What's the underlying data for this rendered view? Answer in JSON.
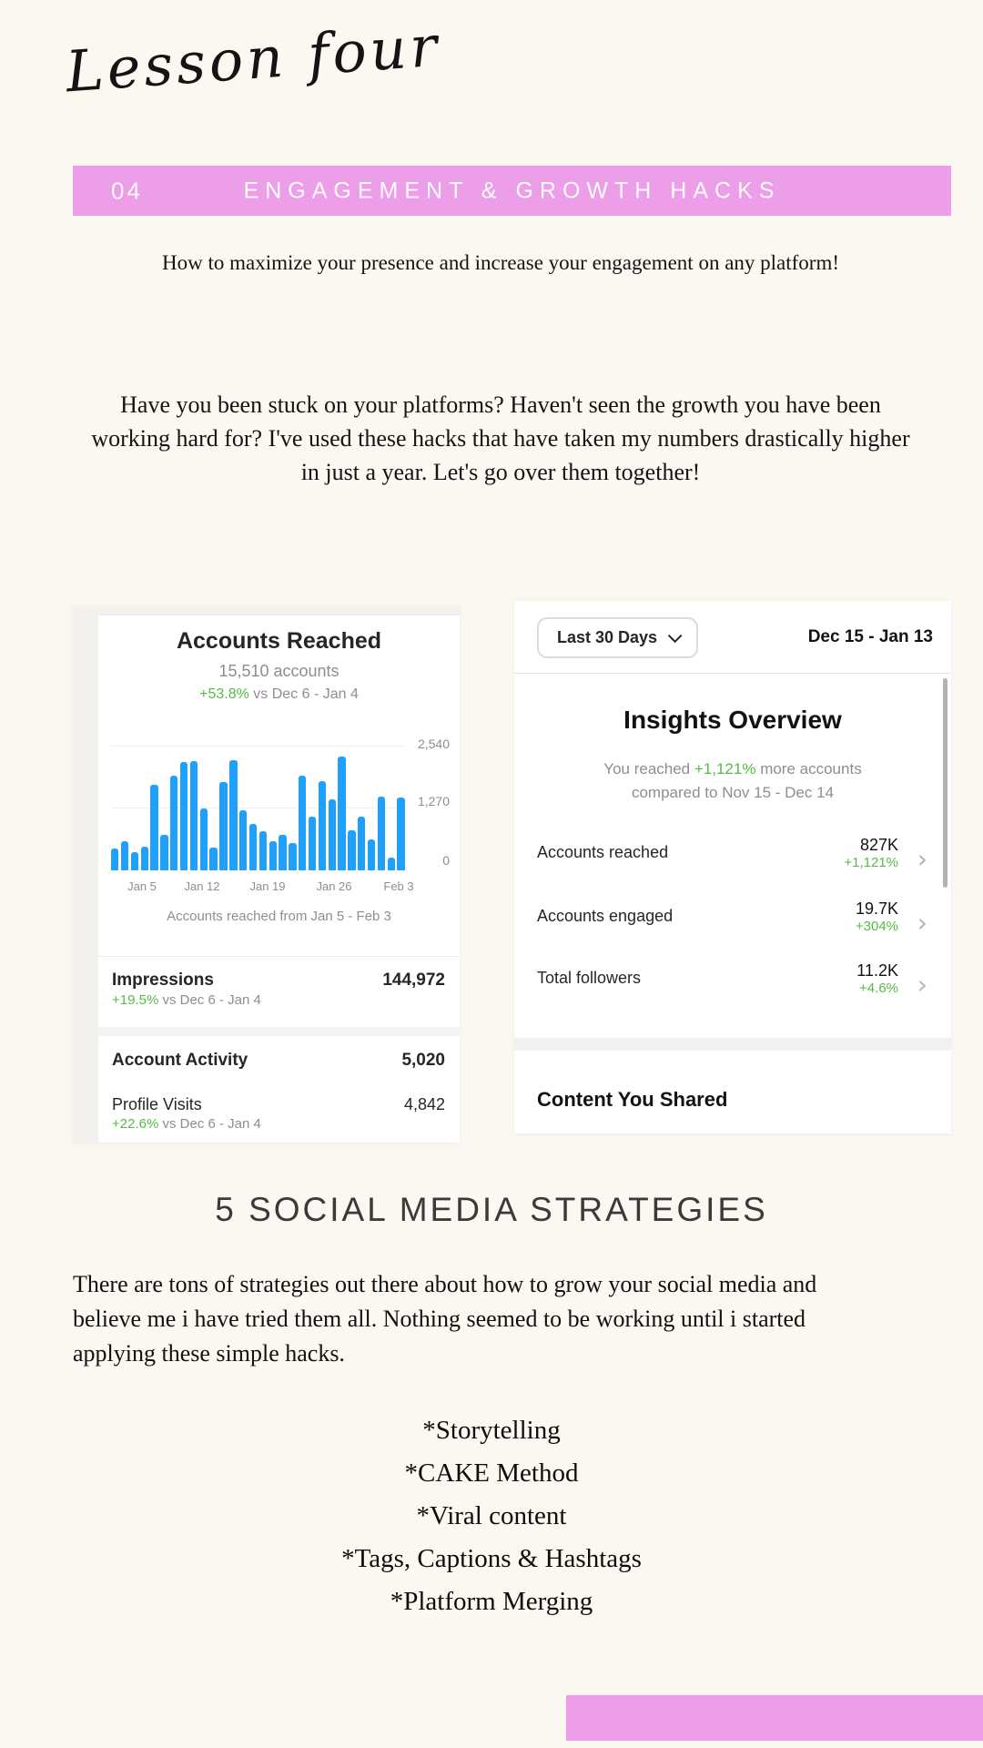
{
  "page": {
    "script_title": "Lesson four",
    "banner": {
      "number": "04",
      "title": "ENGAGEMENT & GROWTH HACKS"
    },
    "subtitle": "How to maximize your presence and increase your engagement on any platform!",
    "intro": "Have you been stuck on your platforms? Haven't seen the growth you have been working hard for? I've used these hacks that have taken my numbers drastically higher in just a year. Let's go over them together!",
    "strategies_heading": "5 SOCIAL MEDIA STRATEGIES",
    "strategies_intro": "There are tons of strategies out there about how to grow your social media and believe me i have tried them all. Nothing seemed to be working until i started applying these simple hacks.",
    "strategies": [
      "*Storytelling",
      "*CAKE Method",
      "*Viral content",
      "*Tags, Captions & Hashtags",
      "*Platform Merging"
    ]
  },
  "reach_card": {
    "title": "Accounts Reached",
    "subtitle": "15,510 accounts",
    "delta": "+53.8%",
    "delta_suffix": " vs Dec 6 - Jan 4",
    "caption": "Accounts reached from Jan 5 - Feb 3",
    "impressions": {
      "label": "Impressions",
      "value": "144,972",
      "delta": "+19.5%",
      "delta_suffix": " vs Dec 6 - Jan 4"
    },
    "account_activity": {
      "label": "Account Activity",
      "value": "5,020"
    },
    "profile_visits": {
      "label": "Profile Visits",
      "value": "4,842",
      "delta": "+22.6%",
      "delta_suffix": " vs Dec 6 - Jan 4"
    }
  },
  "insights_card": {
    "range_button": "Last 30 Days",
    "date_range": "Dec 15 - Jan 13",
    "title": "Insights Overview",
    "summary_prefix": "You reached ",
    "summary_delta": "+1,121%",
    "summary_suffix": " more accounts",
    "summary_line2": "compared to Nov 15 - Dec 14",
    "metrics": [
      {
        "label": "Accounts reached",
        "value": "827K",
        "delta": "+1,121%"
      },
      {
        "label": "Accounts engaged",
        "value": "19.7K",
        "delta": "+304%"
      },
      {
        "label": "Total followers",
        "value": "11.2K",
        "delta": "+4.6%"
      }
    ],
    "footer": "Content You Shared"
  },
  "chart_data": {
    "type": "bar",
    "title": "Accounts Reached",
    "subtitle": "15,510 accounts",
    "x_axis_labels": [
      "Jan 5",
      "Jan 12",
      "Jan 19",
      "Jan 26",
      "Feb 3"
    ],
    "yticks": [
      "2,540",
      "1,270",
      "0"
    ],
    "ylim": [
      0,
      2540
    ],
    "values": [
      440,
      600,
      380,
      480,
      1750,
      720,
      1920,
      2210,
      2230,
      1260,
      460,
      1790,
      2240,
      1230,
      940,
      790,
      590,
      720,
      560,
      1930,
      1090,
      1820,
      1450,
      2320,
      820,
      1090,
      630,
      1510,
      260,
      1480
    ],
    "xlabel": "",
    "ylabel": "",
    "grid": true,
    "legend": false
  },
  "colors": {
    "accent_pink": "#EC9EE8",
    "chart_blue": "#1FA0FA",
    "positive_green": "#56BB46",
    "background_cream": "#FBF8F2"
  }
}
